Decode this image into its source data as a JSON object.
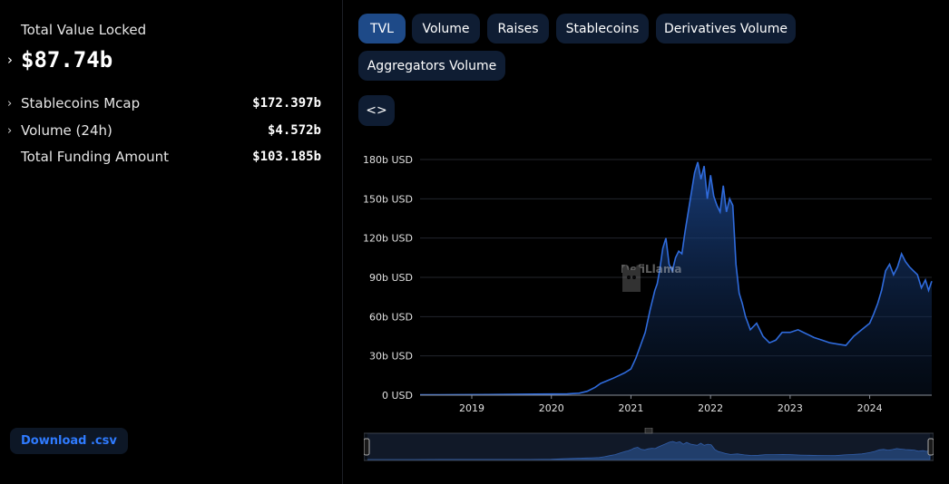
{
  "summary": {
    "tvl_label": "Total Value Locked",
    "tvl_value": "$87.74b",
    "metrics": [
      {
        "label": "Stablecoins Mcap",
        "value": "$172.397b",
        "expandable": true
      },
      {
        "label": "Volume (24h)",
        "value": "$4.572b",
        "expandable": true
      },
      {
        "label": "Total Funding Amount",
        "value": "$103.185b",
        "expandable": false
      }
    ],
    "download_label": "Download .csv"
  },
  "tabs": [
    {
      "label": "TVL",
      "active": true
    },
    {
      "label": "Volume",
      "active": false
    },
    {
      "label": "Raises",
      "active": false
    },
    {
      "label": "Stablecoins",
      "active": false
    },
    {
      "label": "Derivatives Volume",
      "active": false
    },
    {
      "label": "Aggregators Volume",
      "active": false
    }
  ],
  "embed_label": "<>",
  "watermark_text": "DefiLlama",
  "colors": {
    "line": "#2f6bdc",
    "active_tab": "#1e4a88",
    "tab": "#0f1d33",
    "accent": "#2f7bff"
  },
  "chart_data": {
    "type": "area",
    "title": "",
    "xlabel": "",
    "ylabel": "",
    "ylim": [
      0,
      180
    ],
    "y_ticks": [
      0,
      30,
      60,
      90,
      120,
      150,
      180
    ],
    "y_tick_labels": [
      "0 USD",
      "30b USD",
      "60b USD",
      "90b USD",
      "120b USD",
      "150b USD",
      "180b USD"
    ],
    "x_range": [
      2018.35,
      2024.78
    ],
    "x_ticks": [
      2019,
      2020,
      2021,
      2022,
      2023,
      2024
    ],
    "x_tick_labels": [
      "2019",
      "2020",
      "2021",
      "2022",
      "2023",
      "2024"
    ],
    "grid": true,
    "series": [
      {
        "name": "TVL",
        "unit": "billion USD",
        "x": [
          2018.35,
          2018.6,
          2018.9,
          2019.2,
          2019.5,
          2019.8,
          2020.0,
          2020.2,
          2020.35,
          2020.45,
          2020.55,
          2020.62,
          2020.7,
          2020.78,
          2020.85,
          2020.92,
          2021.0,
          2021.06,
          2021.12,
          2021.18,
          2021.24,
          2021.3,
          2021.33,
          2021.36,
          2021.4,
          2021.44,
          2021.48,
          2021.52,
          2021.56,
          2021.6,
          2021.64,
          2021.68,
          2021.72,
          2021.76,
          2021.8,
          2021.84,
          2021.88,
          2021.92,
          2021.96,
          2022.0,
          2022.04,
          2022.08,
          2022.12,
          2022.16,
          2022.2,
          2022.24,
          2022.28,
          2022.32,
          2022.36,
          2022.4,
          2022.44,
          2022.5,
          2022.58,
          2022.66,
          2022.74,
          2022.82,
          2022.9,
          2023.0,
          2023.1,
          2023.2,
          2023.3,
          2023.4,
          2023.5,
          2023.6,
          2023.7,
          2023.8,
          2023.9,
          2024.0,
          2024.05,
          2024.1,
          2024.15,
          2024.2,
          2024.25,
          2024.3,
          2024.35,
          2024.4,
          2024.45,
          2024.5,
          2024.55,
          2024.6,
          2024.65,
          2024.7,
          2024.74,
          2024.78
        ],
        "values": [
          0.3,
          0.3,
          0.4,
          0.5,
          0.7,
          0.8,
          0.9,
          1.0,
          1.5,
          3,
          6,
          9,
          11,
          13,
          15,
          17,
          20,
          28,
          38,
          48,
          65,
          80,
          85,
          95,
          112,
          120,
          100,
          95,
          105,
          110,
          108,
          125,
          140,
          155,
          170,
          178,
          165,
          175,
          150,
          168,
          152,
          145,
          140,
          160,
          140,
          150,
          145,
          100,
          78,
          70,
          60,
          50,
          55,
          45,
          40,
          42,
          48,
          48,
          50,
          47,
          44,
          42,
          40,
          39,
          38,
          45,
          50,
          55,
          62,
          70,
          80,
          95,
          100,
          92,
          98,
          108,
          102,
          98,
          95,
          92,
          82,
          88,
          80,
          87
        ]
      }
    ]
  }
}
